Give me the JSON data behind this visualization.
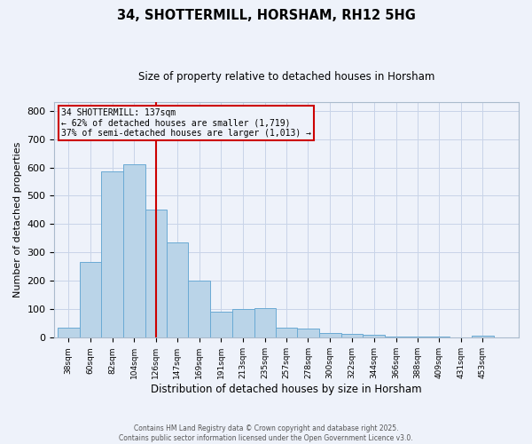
{
  "title1": "34, SHOTTERMILL, HORSHAM, RH12 5HG",
  "title2": "Size of property relative to detached houses in Horsham",
  "xlabel": "Distribution of detached houses by size in Horsham",
  "ylabel": "Number of detached properties",
  "annotation_line1": "34 SHOTTERMILL: 137sqm",
  "annotation_line2": "← 62% of detached houses are smaller (1,719)",
  "annotation_line3": "37% of semi-detached houses are larger (1,013) →",
  "footer1": "Contains HM Land Registry data © Crown copyright and database right 2025.",
  "footer2": "Contains public sector information licensed under the Open Government Licence v3.0.",
  "bar_edges": [
    38,
    60,
    82,
    104,
    126,
    147,
    169,
    191,
    213,
    235,
    257,
    278,
    300,
    322,
    344,
    366,
    388,
    409,
    431,
    453,
    475
  ],
  "bar_heights": [
    37,
    267,
    585,
    610,
    453,
    335,
    201,
    93,
    100,
    103,
    37,
    32,
    17,
    15,
    10,
    4,
    4,
    5,
    1,
    7
  ],
  "property_size": 137,
  "bar_color": "#bad4e8",
  "bar_edge_color": "#6aaad4",
  "vline_color": "#cc0000",
  "annotation_box_color": "#cc0000",
  "bg_color": "#eef2fa",
  "grid_color": "#c8d4e8",
  "ylim": [
    0,
    830
  ],
  "yticks": [
    0,
    100,
    200,
    300,
    400,
    500,
    600,
    700,
    800
  ]
}
